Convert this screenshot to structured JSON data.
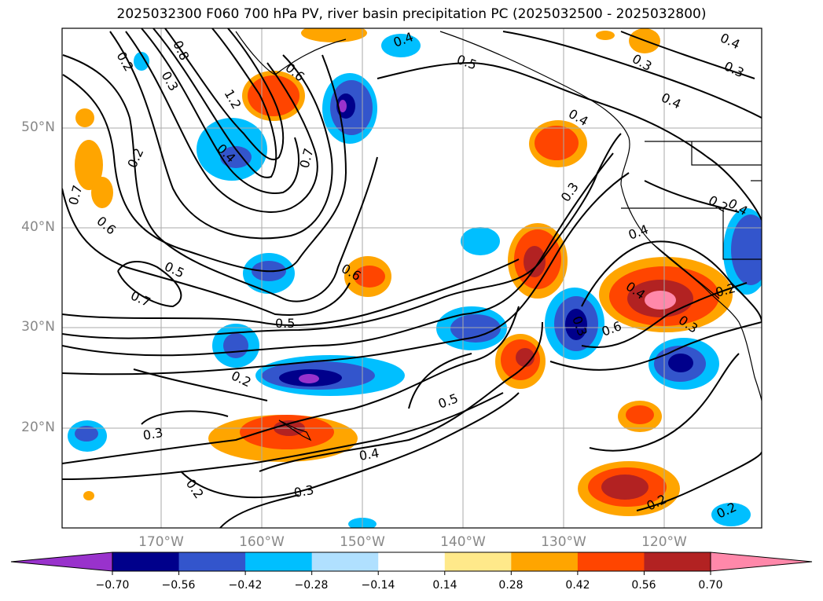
{
  "title": "2025032300 F060 700 hPa PV, river basin precipitation PC (2025032500 - 2025032800)",
  "map": {
    "lat_labels": [
      "50°N",
      "40°N",
      "30°N",
      "20°N"
    ],
    "lon_labels": [
      "170°W",
      "160°W",
      "150°W",
      "140°W",
      "130°W",
      "120°W"
    ],
    "contour_labels": [
      "0.2",
      "0.8",
      "0.3",
      "1.2",
      "0.6",
      "0.4",
      "0.7",
      "0.2",
      "0.7",
      "0.6",
      "0.5",
      "0.7",
      "0.5",
      "0.6",
      "0.4",
      "0.5",
      "0.3",
      "0.4",
      "0.3",
      "0.4",
      "0.4",
      "0.3",
      "0.4",
      "0.4",
      "0.2",
      "0.6",
      "0.3",
      "0.3",
      "0.2",
      "0.5",
      "0.4",
      "0.3",
      "0.2",
      "0.3",
      "0.2",
      "0.2",
      "0.2",
      "0.4"
    ]
  },
  "colorbar": {
    "ticks": [
      "−0.70",
      "−0.56",
      "−0.42",
      "−0.28",
      "−0.14",
      "0.14",
      "0.28",
      "0.42",
      "0.56",
      "0.70"
    ],
    "colors": [
      "#9932cc",
      "#00008b",
      "#3355cc",
      "#00bfff",
      "#b0e0ff",
      "#ffffff",
      "#ffe98a",
      "#ffa500",
      "#ff4500",
      "#b22222",
      "#ff88aa"
    ]
  },
  "colors": {
    "land_line": "#000000",
    "grid": "#aaaaaa",
    "contour": "#000000"
  }
}
